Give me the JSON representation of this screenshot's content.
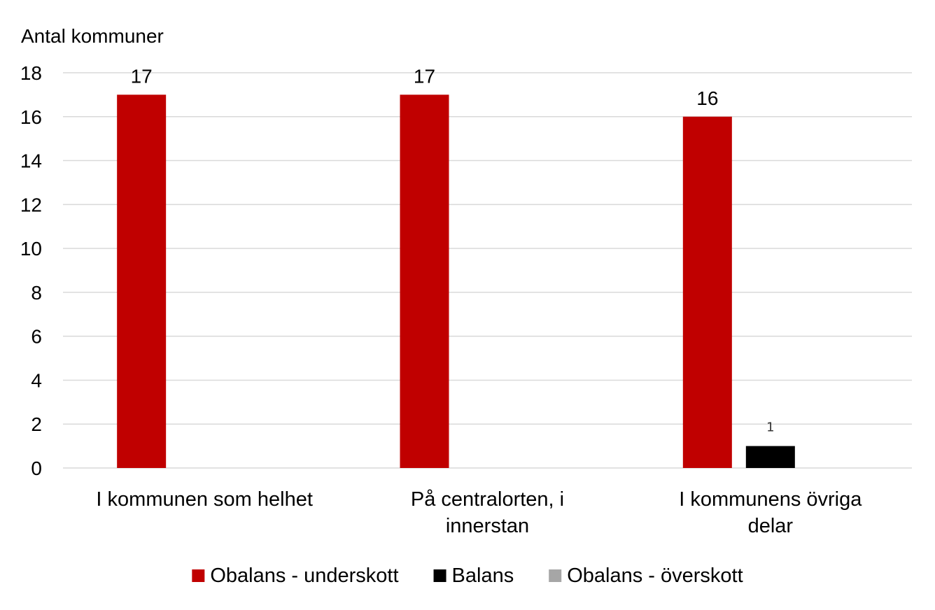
{
  "chart_data": {
    "type": "bar",
    "ylabel": "Antal kommuner",
    "ylim": [
      0,
      18
    ],
    "yticks": [
      0,
      2,
      4,
      6,
      8,
      10,
      12,
      14,
      16,
      18
    ],
    "grid": true,
    "legend_position": "bottom",
    "categories": [
      [
        "I kommunen som helhet"
      ],
      [
        "På centralorten, i",
        "innerstan"
      ],
      [
        "I kommunens övriga",
        "delar"
      ]
    ],
    "series": [
      {
        "name": "Obalans - underskott",
        "color": "#c00000",
        "values": [
          17,
          17,
          16
        ]
      },
      {
        "name": "Balans",
        "color": "#000000",
        "values": [
          null,
          null,
          1
        ]
      },
      {
        "name": "Obalans - överskott",
        "color": "#a6a6a6",
        "values": [
          null,
          null,
          null
        ]
      }
    ]
  }
}
